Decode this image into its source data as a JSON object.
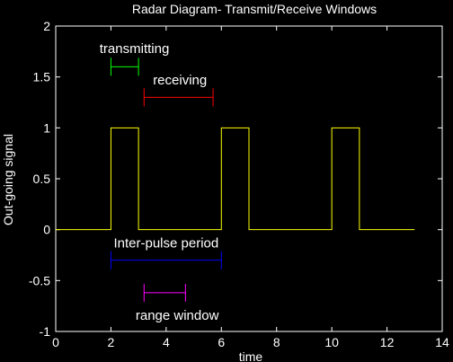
{
  "chart_data": {
    "type": "line",
    "title": "Radar Diagram- Transmit/Receive Windows",
    "xlabel": "time",
    "ylabel": "Out-going signal",
    "xlim": [
      0,
      14
    ],
    "ylim": [
      -1,
      2
    ],
    "xticks": [
      "0",
      "2",
      "4",
      "6",
      "8",
      "10",
      "12",
      "14"
    ],
    "yticks": [
      "-1",
      "-0.5",
      "0",
      "0.5",
      "1",
      "1.5",
      "2"
    ],
    "grid": false,
    "series": [
      {
        "color": "#ffff00",
        "x": [
          0,
          2,
          2,
          3,
          3,
          6,
          6,
          7,
          7,
          10,
          10,
          11,
          11,
          13
        ],
        "y": [
          0,
          0,
          1,
          1,
          0,
          0,
          1,
          1,
          0,
          0,
          1,
          1,
          0,
          0
        ]
      }
    ],
    "intervals": [
      {
        "label": "transmitting",
        "x": [
          2,
          3
        ],
        "y": 1.6,
        "color": "#00ff00",
        "label_x": 2.85,
        "label_y": 1.78
      },
      {
        "label": "receiving",
        "x": [
          3.2,
          5.7
        ],
        "y": 1.3,
        "color": "#ff0000",
        "label_x": 4.5,
        "label_y": 1.47
      },
      {
        "label": "Inter-pulse period",
        "x": [
          2,
          6
        ],
        "y": -0.3,
        "color": "#0000ff",
        "label_x": 4.0,
        "label_y": -0.13
      },
      {
        "label": "range window",
        "x": [
          3.2,
          4.7
        ],
        "y": -0.62,
        "color": "#ff00ff",
        "label_x": 4.4,
        "label_y": -0.84
      }
    ]
  }
}
